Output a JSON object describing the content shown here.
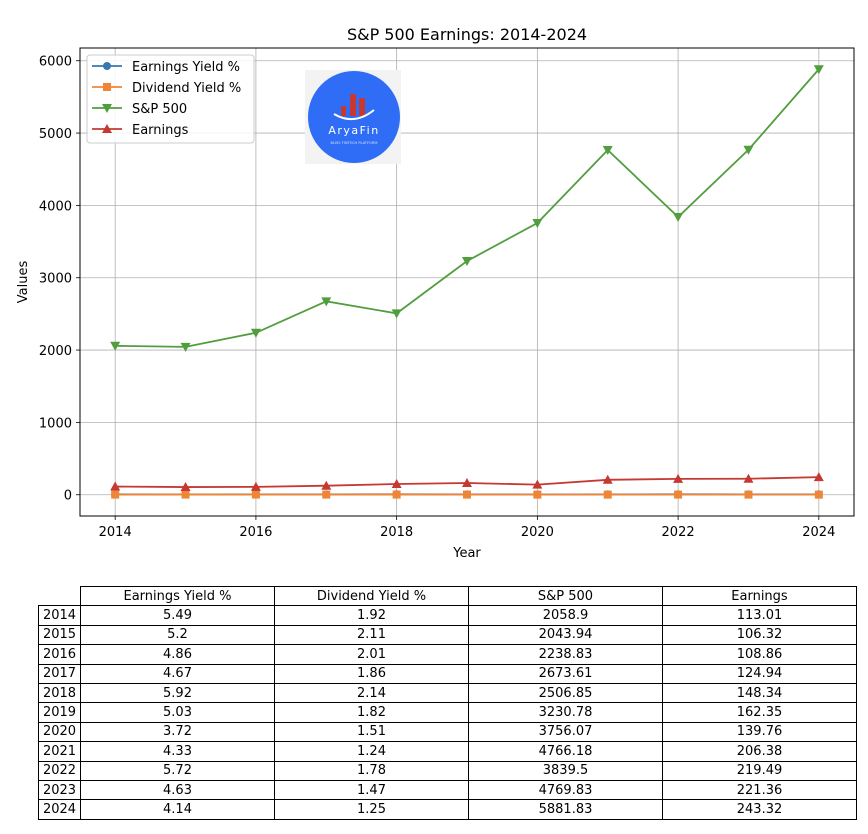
{
  "chart_data": {
    "type": "line",
    "title": "S&P 500 Earnings: 2014-2024",
    "xlabel": "Year",
    "ylabel": "Values",
    "x": [
      2014,
      2015,
      2016,
      2017,
      2018,
      2019,
      2020,
      2021,
      2022,
      2023,
      2024
    ],
    "xticks": [
      "2014",
      "2016",
      "2018",
      "2020",
      "2022",
      "2024"
    ],
    "yticks": [
      "0",
      "1000",
      "2000",
      "3000",
      "4000",
      "5000",
      "6000"
    ],
    "xlim": [
      2013.5,
      2024.5
    ],
    "ylim": [
      -294,
      6176
    ],
    "grid": true,
    "legend_position": "top-left",
    "series": [
      {
        "name": "Earnings Yield %",
        "color": "#3a76af",
        "marker": "circle",
        "values": [
          5.49,
          5.2,
          4.86,
          4.67,
          5.92,
          5.03,
          3.72,
          4.33,
          5.72,
          4.63,
          4.14
        ]
      },
      {
        "name": "Dividend Yield %",
        "color": "#ef8636",
        "marker": "square",
        "values": [
          1.92,
          2.11,
          2.01,
          1.86,
          2.14,
          1.82,
          1.51,
          1.24,
          1.78,
          1.47,
          1.25
        ]
      },
      {
        "name": "S&P 500",
        "color": "#519e3e",
        "marker": "triangle-down",
        "values": [
          2058.9,
          2043.94,
          2238.83,
          2673.61,
          2506.85,
          3230.78,
          3756.07,
          4766.18,
          3839.5,
          4769.83,
          5881.83
        ]
      },
      {
        "name": "Earnings",
        "color": "#c53932",
        "marker": "triangle-up",
        "values": [
          113.01,
          106.32,
          108.86,
          124.94,
          148.34,
          162.35,
          139.76,
          206.38,
          219.49,
          221.36,
          243.32
        ]
      }
    ]
  },
  "logo": {
    "text": "AryaFin",
    "tagline": "BLISS FINTECH PLATFORM",
    "bg_color": "#2f6df6"
  },
  "table": {
    "columns": [
      "Earnings Yield %",
      "Dividend Yield %",
      "S&P 500",
      "Earnings"
    ],
    "rows": [
      {
        "label": "2014",
        "cells": [
          "5.49",
          "1.92",
          "2058.9",
          "113.01"
        ]
      },
      {
        "label": "2015",
        "cells": [
          "5.2",
          "2.11",
          "2043.94",
          "106.32"
        ]
      },
      {
        "label": "2016",
        "cells": [
          "4.86",
          "2.01",
          "2238.83",
          "108.86"
        ]
      },
      {
        "label": "2017",
        "cells": [
          "4.67",
          "1.86",
          "2673.61",
          "124.94"
        ]
      },
      {
        "label": "2018",
        "cells": [
          "5.92",
          "2.14",
          "2506.85",
          "148.34"
        ]
      },
      {
        "label": "2019",
        "cells": [
          "5.03",
          "1.82",
          "3230.78",
          "162.35"
        ]
      },
      {
        "label": "2020",
        "cells": [
          "3.72",
          "1.51",
          "3756.07",
          "139.76"
        ]
      },
      {
        "label": "2021",
        "cells": [
          "4.33",
          "1.24",
          "4766.18",
          "206.38"
        ]
      },
      {
        "label": "2022",
        "cells": [
          "5.72",
          "1.78",
          "3839.5",
          "219.49"
        ]
      },
      {
        "label": "2023",
        "cells": [
          "4.63",
          "1.47",
          "4769.83",
          "221.36"
        ]
      },
      {
        "label": "2024",
        "cells": [
          "4.14",
          "1.25",
          "5881.83",
          "243.32"
        ]
      }
    ]
  }
}
